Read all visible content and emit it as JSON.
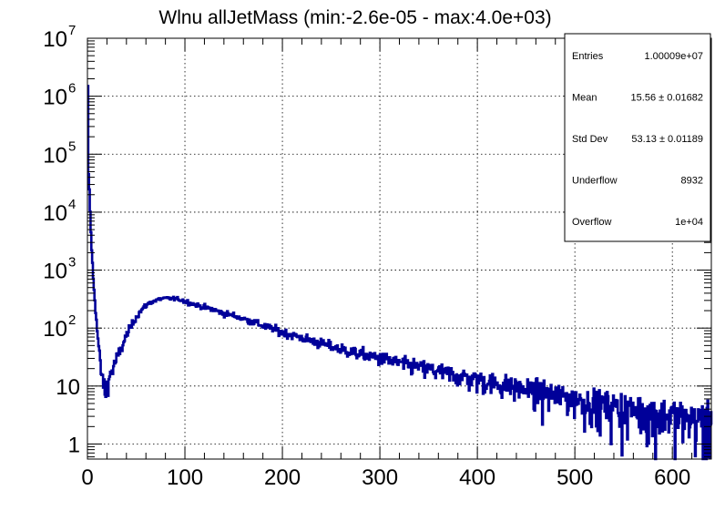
{
  "chart_data": {
    "type": "histogram",
    "title": "Wlnu allJetMass (min:-2.6e-05 - max:4.0e+03)",
    "xlabel": "",
    "ylabel": "",
    "xlim": [
      0,
      640
    ],
    "ylim": [
      0.55,
      10000000
    ],
    "yscale": "log",
    "grid": true,
    "line_color": "#000099",
    "x_ticks": [
      {
        "value": 0,
        "label": "0"
      },
      {
        "value": 100,
        "label": "100"
      },
      {
        "value": 200,
        "label": "200"
      },
      {
        "value": 300,
        "label": "300"
      },
      {
        "value": 400,
        "label": "400"
      },
      {
        "value": 500,
        "label": "500"
      },
      {
        "value": 600,
        "label": "600"
      }
    ],
    "y_ticks": [
      {
        "value": 1,
        "label": "1",
        "base": "",
        "exp": ""
      },
      {
        "value": 10,
        "label": "10",
        "base": "",
        "exp": ""
      },
      {
        "value": 100,
        "label": "",
        "base": "10",
        "exp": "2"
      },
      {
        "value": 1000,
        "label": "",
        "base": "10",
        "exp": "3"
      },
      {
        "value": 10000,
        "label": "",
        "base": "10",
        "exp": "4"
      },
      {
        "value": 100000,
        "label": "",
        "base": "10",
        "exp": "5"
      },
      {
        "value": 1000000,
        "label": "",
        "base": "10",
        "exp": "6"
      },
      {
        "value": 10000000,
        "label": "",
        "base": "10",
        "exp": "7"
      }
    ],
    "series": [
      {
        "x": [
          0,
          0.5,
          1,
          2,
          3,
          4,
          5,
          6,
          8,
          10,
          12,
          14,
          16,
          18,
          20,
          22,
          25,
          28,
          32,
          36,
          40,
          45,
          50,
          55,
          60,
          65,
          70,
          75,
          80,
          85,
          90,
          95,
          100,
          110,
          120,
          130,
          140,
          150,
          160,
          170,
          180,
          190,
          200,
          220,
          240,
          260,
          280,
          300,
          320,
          340,
          360,
          380,
          400,
          420,
          440,
          460,
          480,
          500,
          520,
          540,
          560,
          580,
          600,
          620,
          640
        ],
        "y": [
          6000000,
          1000000,
          50000,
          25000,
          8000,
          3000,
          1500,
          700,
          250,
          90,
          40,
          18,
          12,
          8,
          10,
          14,
          18,
          24,
          35,
          50,
          75,
          110,
          155,
          200,
          245,
          280,
          300,
          320,
          325,
          325,
          320,
          310,
          290,
          255,
          230,
          205,
          180,
          165,
          145,
          128,
          110,
          97,
          85,
          68,
          54,
          43,
          36,
          30,
          25,
          21,
          18,
          15,
          13,
          11,
          9.5,
          8,
          7,
          6,
          5.2,
          4.5,
          4,
          3.5,
          3.1,
          2.7,
          2.4
        ]
      }
    ]
  },
  "stats_box": {
    "rows": [
      {
        "label": "Entries",
        "value": "1.00009e+07"
      },
      {
        "label": "Mean",
        "value": "15.56 ± 0.01682"
      },
      {
        "label": "Std Dev",
        "value": "53.13 ± 0.01189"
      },
      {
        "label": "Underflow",
        "value": "8932"
      },
      {
        "label": "Overflow",
        "value": "1e+04"
      }
    ]
  }
}
